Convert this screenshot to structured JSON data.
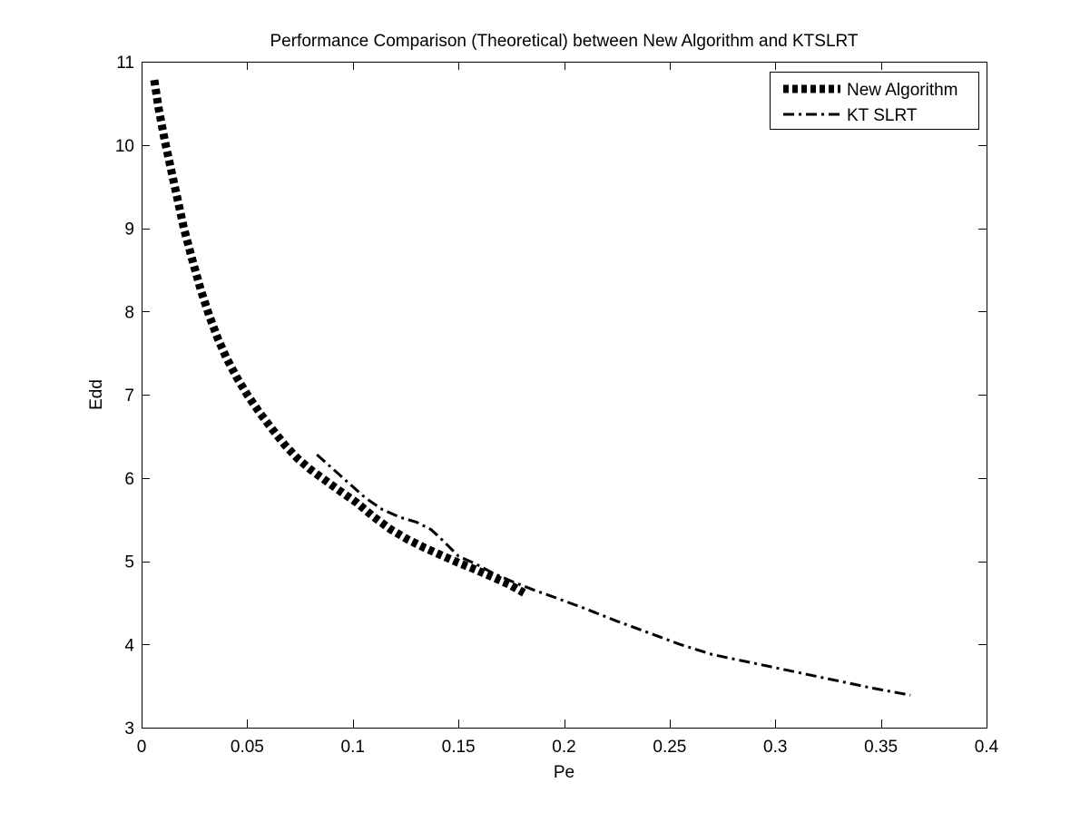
{
  "chart_data": {
    "type": "line",
    "title": "Performance Comparison (Theoretical) between New Algorithm and KTSLRT",
    "xlabel": "Pe",
    "ylabel": "Edd",
    "xlim": [
      0,
      0.4
    ],
    "ylim": [
      3,
      11
    ],
    "xticks": [
      0,
      0.05,
      0.1,
      0.15,
      0.2,
      0.25,
      0.3,
      0.35,
      0.4
    ],
    "xtick_labels": [
      "0",
      "0.05",
      "0.1",
      "0.15",
      "0.2",
      "0.25",
      "0.3",
      "0.35",
      "0.4"
    ],
    "yticks": [
      3,
      4,
      5,
      6,
      7,
      8,
      9,
      10,
      11
    ],
    "ytick_labels": [
      "3",
      "4",
      "5",
      "6",
      "7",
      "8",
      "9",
      "10",
      "11"
    ],
    "grid": false,
    "legend": {
      "position": "top-right"
    },
    "series": [
      {
        "name": "New Algorithm",
        "color": "#000000",
        "style": "dotted-thick",
        "x": [
          0.006,
          0.008,
          0.011,
          0.014,
          0.017,
          0.02,
          0.024,
          0.028,
          0.032,
          0.036,
          0.04,
          0.045,
          0.05,
          0.056,
          0.062,
          0.068,
          0.074,
          0.08,
          0.087,
          0.094,
          0.102,
          0.11,
          0.118,
          0.126,
          0.134,
          0.142,
          0.15,
          0.158,
          0.166,
          0.174,
          0.181
        ],
        "y": [
          10.78,
          10.45,
          10.05,
          9.7,
          9.35,
          9.0,
          8.62,
          8.26,
          7.95,
          7.68,
          7.45,
          7.21,
          7.0,
          6.78,
          6.58,
          6.39,
          6.23,
          6.1,
          5.97,
          5.84,
          5.7,
          5.53,
          5.38,
          5.26,
          5.16,
          5.07,
          4.98,
          4.9,
          4.81,
          4.72,
          4.62
        ]
      },
      {
        "name": "KT SLRT",
        "color": "#000000",
        "style": "dash-dot",
        "x": [
          0.083,
          0.09,
          0.098,
          0.106,
          0.114,
          0.122,
          0.13,
          0.137,
          0.143,
          0.15,
          0.158,
          0.166,
          0.175,
          0.185,
          0.195,
          0.21,
          0.225,
          0.24,
          0.255,
          0.27,
          0.285,
          0.3,
          0.315,
          0.33,
          0.345,
          0.364
        ],
        "y": [
          6.28,
          6.12,
          5.94,
          5.76,
          5.62,
          5.53,
          5.47,
          5.38,
          5.24,
          5.06,
          4.97,
          4.86,
          4.76,
          4.66,
          4.57,
          4.43,
          4.28,
          4.14,
          4.0,
          3.88,
          3.8,
          3.72,
          3.64,
          3.56,
          3.48,
          3.39
        ]
      }
    ]
  }
}
